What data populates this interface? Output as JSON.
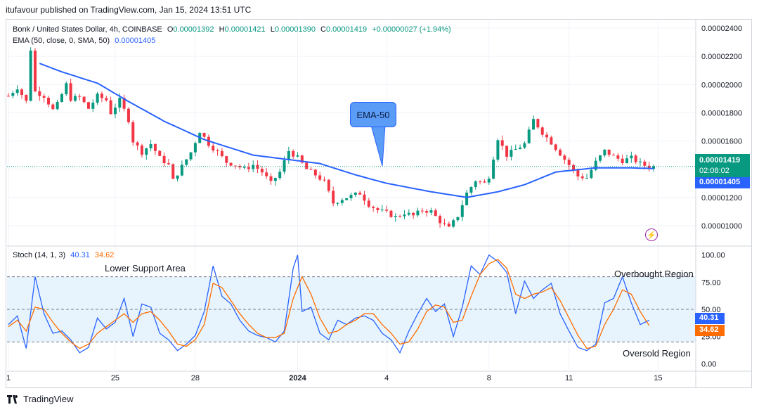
{
  "publish": {
    "text": "itufavour published on TradingView.com, Jan 15, 2024 13:51 UTC"
  },
  "legend": {
    "symbol": "Bonk / United States Dollar, 4h, COINBASE",
    "o_label": "O",
    "o_value": "0.00001392",
    "h_label": "H",
    "h_value": "0.00001421",
    "l_label": "L",
    "l_value": "0.00001390",
    "c_label": "C",
    "c_value": "0.00001419",
    "change": "+0.00000027 (+1.94%)",
    "ema_label": "EMA (50, close, 0, SMA, 50)",
    "ema_value": "0.00001405"
  },
  "stoch_legend": {
    "label": "Stoch (14, 1, 3)",
    "k_value": "40.31",
    "d_value": "34.62"
  },
  "annotations": {
    "callout": "EMA-50",
    "lower_support": "Lower Support Area",
    "overbought": "Overbought Region",
    "oversold": "Oversold Region"
  },
  "price_badges": {
    "last_price": "0.00001419",
    "countdown": "02:08:02",
    "ema_price": "0.00001405"
  },
  "stoch_badges": {
    "k": "40.31",
    "d": "34.62"
  },
  "brand": {
    "name": "TradingView"
  },
  "colors": {
    "up": "#089981",
    "down": "#f23645",
    "ema": "#2962ff",
    "stoch_k": "#2962ff",
    "stoch_d": "#ff6d00",
    "band_fill": "#e3f2fd",
    "callout": "#5b9cf6",
    "badge_green": "#089981",
    "badge_blue": "#2962ff"
  },
  "chart_data": [
    {
      "type": "candlestick",
      "title": "Bonk / United States Dollar, 4h, COINBASE",
      "x_ticks": [
        "1",
        "25",
        "28",
        "2024",
        "4",
        "8",
        "11",
        "15"
      ],
      "y_ticks": [
        "0.00001000",
        "0.00001200",
        "0.00001400",
        "0.00001600",
        "0.00001800",
        "0.00002000",
        "0.00002200",
        "0.00002400"
      ],
      "ylim": [
        8.8e-06,
        2.45e-05
      ],
      "close_path": [
        [
          0,
          19.2
        ],
        [
          2,
          19.8
        ],
        [
          4,
          18.8
        ],
        [
          5,
          22.5
        ],
        [
          6,
          19.5
        ],
        [
          8,
          19.2
        ],
        [
          10,
          18.2
        ],
        [
          11,
          18.6
        ],
        [
          13,
          20.0
        ],
        [
          14,
          19.0
        ],
        [
          16,
          19.1
        ],
        [
          18,
          18.3
        ],
        [
          20,
          19.2
        ],
        [
          22,
          18.9
        ],
        [
          23,
          18.0
        ],
        [
          25,
          18.9
        ],
        [
          27,
          17.5
        ],
        [
          28,
          16.0
        ],
        [
          30,
          15.2
        ],
        [
          32,
          15.8
        ],
        [
          34,
          14.8
        ],
        [
          36,
          14.3
        ],
        [
          37,
          13.2
        ],
        [
          39,
          14.2
        ],
        [
          41,
          15.2
        ],
        [
          43,
          16.7
        ],
        [
          45,
          15.8
        ],
        [
          47,
          15.2
        ],
        [
          49,
          14.5
        ],
        [
          51,
          14.3
        ],
        [
          53,
          14.0
        ],
        [
          55,
          14.3
        ],
        [
          57,
          13.8
        ],
        [
          59,
          13.0
        ],
        [
          61,
          13.8
        ],
        [
          63,
          15.3
        ],
        [
          65,
          14.8
        ],
        [
          67,
          14.0
        ],
        [
          69,
          13.6
        ],
        [
          71,
          13.1
        ],
        [
          73,
          11.6
        ],
        [
          75,
          11.9
        ],
        [
          77,
          12.1
        ],
        [
          79,
          12.3
        ],
        [
          81,
          11.5
        ],
        [
          83,
          11.1
        ],
        [
          85,
          10.9
        ],
        [
          87,
          10.6
        ],
        [
          89,
          10.9
        ],
        [
          91,
          10.7
        ],
        [
          93,
          11.1
        ],
        [
          95,
          11.0
        ],
        [
          97,
          10.3
        ],
        [
          99,
          9.8
        ],
        [
          101,
          10.7
        ],
        [
          103,
          12.3
        ],
        [
          105,
          13.2
        ],
        [
          107,
          13.0
        ],
        [
          108,
          13.5
        ],
        [
          110,
          16.2
        ],
        [
          112,
          15.0
        ],
        [
          114,
          15.4
        ],
        [
          116,
          15.8
        ],
        [
          118,
          17.5
        ],
        [
          120,
          16.6
        ],
        [
          122,
          15.9
        ],
        [
          124,
          15.1
        ],
        [
          126,
          14.3
        ],
        [
          128,
          13.5
        ],
        [
          130,
          13.4
        ],
        [
          132,
          14.5
        ],
        [
          134,
          15.3
        ],
        [
          136,
          14.9
        ],
        [
          138,
          14.6
        ],
        [
          140,
          14.8
        ],
        [
          142,
          14.4
        ],
        [
          144,
          14.15
        ],
        [
          145,
          14.19
        ]
      ],
      "ema_50": [
        [
          7,
          21.5
        ],
        [
          12,
          20.9
        ],
        [
          20,
          20.1
        ],
        [
          27,
          18.8
        ],
        [
          35,
          17.4
        ],
        [
          44,
          16.1
        ],
        [
          55,
          15.0
        ],
        [
          65,
          14.6
        ],
        [
          70,
          14.4
        ],
        [
          78,
          13.6
        ],
        [
          85,
          13.0
        ],
        [
          95,
          12.4
        ],
        [
          103,
          12.0
        ],
        [
          110,
          12.4
        ],
        [
          116,
          12.9
        ],
        [
          123,
          13.8
        ],
        [
          132,
          14.1
        ],
        [
          139,
          14.1
        ],
        [
          145,
          14.05
        ]
      ],
      "last_price": 1.419e-05,
      "ema_last": 1.405e-05
    },
    {
      "type": "line",
      "title": "Stoch (14, 1, 3)",
      "y_ticks": [
        "0.00",
        "25.00",
        "50.00",
        "75.00",
        "100.00"
      ],
      "ylim": [
        -5,
        105
      ],
      "band": [
        20,
        80
      ],
      "midline": 50,
      "series": [
        {
          "name": "%K",
          "values": [
            [
              0,
              36
            ],
            [
              2,
              44
            ],
            [
              4,
              14
            ],
            [
              6,
              80
            ],
            [
              8,
              46
            ],
            [
              10,
              28
            ],
            [
              12,
              30
            ],
            [
              14,
              22
            ],
            [
              16,
              10
            ],
            [
              18,
              15
            ],
            [
              20,
              42
            ],
            [
              22,
              32
            ],
            [
              24,
              38
            ],
            [
              26,
              60
            ],
            [
              28,
              25
            ],
            [
              30,
              55
            ],
            [
              32,
              52
            ],
            [
              34,
              28
            ],
            [
              36,
              22
            ],
            [
              38,
              12
            ],
            [
              40,
              18
            ],
            [
              42,
              26
            ],
            [
              44,
              48
            ],
            [
              46,
              90
            ],
            [
              48,
              62
            ],
            [
              50,
              55
            ],
            [
              52,
              40
            ],
            [
              54,
              30
            ],
            [
              56,
              26
            ],
            [
              58,
              24
            ],
            [
              60,
              20
            ],
            [
              62,
              30
            ],
            [
              64,
              88
            ],
            [
              65,
              100
            ],
            [
              66,
              48
            ],
            [
              68,
              52
            ],
            [
              70,
              28
            ],
            [
              72,
              22
            ],
            [
              74,
              40
            ],
            [
              76,
              36
            ],
            [
              78,
              42
            ],
            [
              80,
              44
            ],
            [
              82,
              40
            ],
            [
              84,
              28
            ],
            [
              86,
              22
            ],
            [
              88,
              10
            ],
            [
              90,
              30
            ],
            [
              92,
              46
            ],
            [
              94,
              60
            ],
            [
              96,
              48
            ],
            [
              98,
              55
            ],
            [
              100,
              25
            ],
            [
              102,
              52
            ],
            [
              104,
              90
            ],
            [
              106,
              82
            ],
            [
              108,
              100
            ],
            [
              110,
              94
            ],
            [
              112,
              84
            ],
            [
              114,
              46
            ],
            [
              116,
              76
            ],
            [
              118,
              60
            ],
            [
              120,
              68
            ],
            [
              122,
              74
            ],
            [
              124,
              46
            ],
            [
              126,
              30
            ],
            [
              128,
              15
            ],
            [
              130,
              12
            ],
            [
              132,
              18
            ],
            [
              134,
              56
            ],
            [
              136,
              60
            ],
            [
              138,
              80
            ],
            [
              140,
              56
            ],
            [
              142,
              36
            ],
            [
              144,
              40
            ]
          ]
        },
        {
          "name": "%D",
          "values": [
            [
              0,
              34
            ],
            [
              2,
              40
            ],
            [
              4,
              30
            ],
            [
              6,
              52
            ],
            [
              8,
              50
            ],
            [
              10,
              38
            ],
            [
              12,
              28
            ],
            [
              14,
              20
            ],
            [
              16,
              14
            ],
            [
              18,
              18
            ],
            [
              20,
              28
            ],
            [
              22,
              34
            ],
            [
              24,
              40
            ],
            [
              26,
              46
            ],
            [
              28,
              38
            ],
            [
              30,
              46
            ],
            [
              32,
              48
            ],
            [
              34,
              40
            ],
            [
              36,
              30
            ],
            [
              38,
              18
            ],
            [
              40,
              16
            ],
            [
              42,
              22
            ],
            [
              44,
              36
            ],
            [
              46,
              74
            ],
            [
              48,
              70
            ],
            [
              50,
              58
            ],
            [
              52,
              46
            ],
            [
              54,
              36
            ],
            [
              56,
              28
            ],
            [
              58,
              24
            ],
            [
              60,
              24
            ],
            [
              62,
              28
            ],
            [
              64,
              60
            ],
            [
              66,
              80
            ],
            [
              68,
              64
            ],
            [
              70,
              42
            ],
            [
              72,
              28
            ],
            [
              74,
              30
            ],
            [
              76,
              36
            ],
            [
              78,
              40
            ],
            [
              80,
              46
            ],
            [
              82,
              46
            ],
            [
              84,
              36
            ],
            [
              86,
              28
            ],
            [
              88,
              18
            ],
            [
              90,
              20
            ],
            [
              92,
              32
            ],
            [
              94,
              48
            ],
            [
              96,
              54
            ],
            [
              98,
              52
            ],
            [
              100,
              38
            ],
            [
              102,
              40
            ],
            [
              104,
              62
            ],
            [
              106,
              82
            ],
            [
              108,
              92
            ],
            [
              110,
              96
            ],
            [
              112,
              88
            ],
            [
              114,
              64
            ],
            [
              116,
              60
            ],
            [
              118,
              64
            ],
            [
              120,
              66
            ],
            [
              122,
              70
            ],
            [
              124,
              58
            ],
            [
              126,
              42
            ],
            [
              128,
              26
            ],
            [
              130,
              14
            ],
            [
              132,
              16
            ],
            [
              134,
              36
            ],
            [
              136,
              50
            ],
            [
              138,
              68
            ],
            [
              140,
              64
            ],
            [
              142,
              48
            ],
            [
              144,
              35
            ]
          ]
        }
      ],
      "k_last": 40.31,
      "d_last": 34.62
    }
  ]
}
